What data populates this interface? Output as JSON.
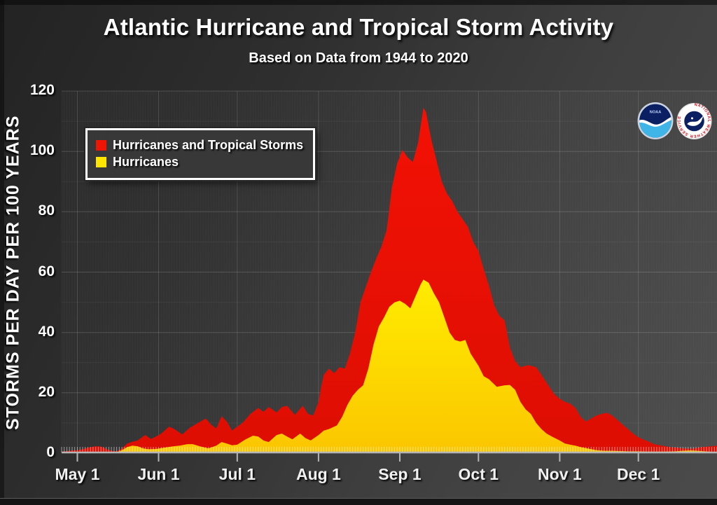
{
  "header": {
    "title": "Atlantic Hurricane and Tropical Storm Activity",
    "subtitle": "Based on Data from 1944 to 2020"
  },
  "legend": {
    "items": [
      {
        "label": "Hurricanes and Tropical Storms",
        "color": "#ee1505"
      },
      {
        "label": "Hurricanes",
        "color": "#ffe600"
      }
    ]
  },
  "logos": {
    "noaa_text": "NOAA",
    "nws_ring_text": "NATIONAL WEATHER SERVICE"
  },
  "colors": {
    "storms_red_top": "#f31104",
    "storms_red_bottom": "#dd0e03",
    "hurricane_yellow_top": "#ffec00",
    "hurricane_yellow_bottom": "#fbc600",
    "axis": "#b5b5b5",
    "text": "#ffffff"
  },
  "chart_data": {
    "type": "area",
    "title": "Atlantic Hurricane and Tropical Storm Activity",
    "subtitle": "Based on Data from 1944 to 2020",
    "xlabel": "",
    "ylabel": "STORMS PER DAY PER 100 YEARS",
    "ylim": [
      0,
      120
    ],
    "y_ticks": [
      0,
      20,
      40,
      60,
      80,
      100,
      120
    ],
    "x_tick_labels": [
      "May 1",
      "Jun 1",
      "Jul 1",
      "Aug 1",
      "Sep 1",
      "Oct 1",
      "Nov 1",
      "Dec 1"
    ],
    "x_tick_day_offsets": [
      0,
      31,
      61,
      92,
      123,
      153,
      184,
      214
    ],
    "x_domain_days": [
      -6,
      244
    ],
    "x_units": "days from May 1 (domain approx Apr 25 - Dec 31)",
    "grid": "major horizontal every 20, minor every 10, vertical at month starts, faint daily stripes, daily hatch ticks along baseline",
    "legend_position": "top-left",
    "series": [
      {
        "name": "Hurricanes and Tropical Storms",
        "color": "#ee1505",
        "points": [
          [
            -6,
            0.5
          ],
          [
            -3,
            0.8
          ],
          [
            0,
            1.0
          ],
          [
            2,
            1.3
          ],
          [
            4,
            1.8
          ],
          [
            7,
            2.3
          ],
          [
            9,
            2.2
          ],
          [
            11,
            1.4
          ],
          [
            13,
            0.8
          ],
          [
            15,
            0.6
          ],
          [
            17,
            1.5
          ],
          [
            19,
            3.2
          ],
          [
            21,
            3.8
          ],
          [
            23,
            4.2
          ],
          [
            25,
            5.5
          ],
          [
            26,
            6.0
          ],
          [
            28,
            4.7
          ],
          [
            30,
            5.5
          ],
          [
            32,
            6.5
          ],
          [
            35,
            8.8
          ],
          [
            37,
            8.0
          ],
          [
            40,
            6.2
          ],
          [
            43,
            8.5
          ],
          [
            46,
            10.0
          ],
          [
            49,
            11.5
          ],
          [
            51,
            9.5
          ],
          [
            53,
            8.2
          ],
          [
            55,
            12.2
          ],
          [
            57,
            10.5
          ],
          [
            59,
            7.5
          ],
          [
            61,
            8.8
          ],
          [
            63,
            10.0
          ],
          [
            66,
            13.0
          ],
          [
            69,
            15.0
          ],
          [
            71,
            13.7
          ],
          [
            73,
            15.3
          ],
          [
            76,
            13.5
          ],
          [
            78,
            15.3
          ],
          [
            80,
            15.7
          ],
          [
            83,
            12.7
          ],
          [
            86,
            15.7
          ],
          [
            88,
            13.0
          ],
          [
            90,
            12.5
          ],
          [
            92,
            17.0
          ],
          [
            93,
            22.0
          ],
          [
            94,
            26.0
          ],
          [
            96,
            28.0
          ],
          [
            98,
            26.5
          ],
          [
            100,
            28.5
          ],
          [
            102,
            28.0
          ],
          [
            104,
            33.0
          ],
          [
            106,
            40.0
          ],
          [
            108,
            50.0
          ],
          [
            110,
            55.0
          ],
          [
            112,
            60.0
          ],
          [
            114,
            64.5
          ],
          [
            116,
            68.5
          ],
          [
            118,
            74.0
          ],
          [
            120,
            88.0
          ],
          [
            122,
            96.0
          ],
          [
            124,
            100.5
          ],
          [
            126,
            98.0
          ],
          [
            128,
            96.5
          ],
          [
            130,
            103.0
          ],
          [
            132,
            114.5
          ],
          [
            133,
            113.0
          ],
          [
            135,
            104.0
          ],
          [
            137,
            97.0
          ],
          [
            139,
            90.0
          ],
          [
            141,
            86.0
          ],
          [
            143,
            83.5
          ],
          [
            145,
            80.0
          ],
          [
            147,
            77.5
          ],
          [
            149,
            75.0
          ],
          [
            151,
            70.0
          ],
          [
            153,
            67.0
          ],
          [
            155,
            61.0
          ],
          [
            157,
            55.5
          ],
          [
            159,
            49.0
          ],
          [
            161,
            45.5
          ],
          [
            163,
            44.0
          ],
          [
            165,
            35.0
          ],
          [
            167,
            30.5
          ],
          [
            169,
            28.5
          ],
          [
            172,
            29.2
          ],
          [
            175,
            28.5
          ],
          [
            177,
            26.0
          ],
          [
            180,
            22.0
          ],
          [
            182,
            19.5
          ],
          [
            184,
            18.0
          ],
          [
            186,
            17.0
          ],
          [
            188,
            16.4
          ],
          [
            190,
            15.0
          ],
          [
            192,
            12.0
          ],
          [
            194,
            10.5
          ],
          [
            196,
            11.5
          ],
          [
            198,
            12.5
          ],
          [
            200,
            13.0
          ],
          [
            202,
            13.4
          ],
          [
            204,
            12.5
          ],
          [
            206,
            11.0
          ],
          [
            208,
            9.5
          ],
          [
            210,
            8.0
          ],
          [
            212,
            6.5
          ],
          [
            214,
            5.3
          ],
          [
            216,
            4.5
          ],
          [
            218,
            3.8
          ],
          [
            220,
            3.0
          ],
          [
            223,
            2.5
          ],
          [
            226,
            2.0
          ],
          [
            229,
            1.8
          ],
          [
            232,
            1.5
          ],
          [
            235,
            1.5
          ],
          [
            238,
            2.0
          ],
          [
            241,
            2.2
          ],
          [
            244,
            2.5
          ]
        ]
      },
      {
        "name": "Hurricanes",
        "color": "#ffe600",
        "points": [
          [
            -6,
            0.0
          ],
          [
            0,
            0.1
          ],
          [
            7,
            0.1
          ],
          [
            13,
            0.2
          ],
          [
            15,
            0.3
          ],
          [
            17,
            1.0
          ],
          [
            19,
            2.0
          ],
          [
            21,
            2.5
          ],
          [
            23,
            2.3
          ],
          [
            25,
            1.6
          ],
          [
            27,
            1.3
          ],
          [
            30,
            1.4
          ],
          [
            33,
            1.8
          ],
          [
            36,
            2.2
          ],
          [
            39,
            2.5
          ],
          [
            42,
            3.0
          ],
          [
            44,
            3.0
          ],
          [
            47,
            2.2
          ],
          [
            50,
            1.6
          ],
          [
            53,
            2.5
          ],
          [
            55,
            3.7
          ],
          [
            57,
            3.2
          ],
          [
            59,
            2.6
          ],
          [
            61,
            2.8
          ],
          [
            64,
            4.5
          ],
          [
            67,
            5.8
          ],
          [
            69,
            5.5
          ],
          [
            71,
            4.2
          ],
          [
            73,
            3.7
          ],
          [
            76,
            6.0
          ],
          [
            78,
            6.5
          ],
          [
            80,
            5.5
          ],
          [
            82,
            4.6
          ],
          [
            85,
            6.5
          ],
          [
            87,
            5.0
          ],
          [
            89,
            4.2
          ],
          [
            92,
            6.0
          ],
          [
            94,
            7.5
          ],
          [
            96,
            8.0
          ],
          [
            99,
            9.2
          ],
          [
            101,
            12.0
          ],
          [
            103,
            16.0
          ],
          [
            105,
            19.0
          ],
          [
            107,
            21.0
          ],
          [
            109,
            22.5
          ],
          [
            111,
            28.0
          ],
          [
            113,
            36.0
          ],
          [
            115,
            42.0
          ],
          [
            117,
            45.0
          ],
          [
            119,
            48.5
          ],
          [
            121,
            50.0
          ],
          [
            123,
            50.5
          ],
          [
            125,
            49.5
          ],
          [
            127,
            48.0
          ],
          [
            129,
            52.0
          ],
          [
            131,
            56.0
          ],
          [
            132,
            57.5
          ],
          [
            134,
            56.5
          ],
          [
            136,
            53.0
          ],
          [
            138,
            50.0
          ],
          [
            140,
            45.0
          ],
          [
            142,
            40.0
          ],
          [
            144,
            37.5
          ],
          [
            146,
            37.0
          ],
          [
            148,
            37.5
          ],
          [
            150,
            33.0
          ],
          [
            153,
            29.0
          ],
          [
            155,
            25.5
          ],
          [
            157,
            24.5
          ],
          [
            160,
            22.0
          ],
          [
            163,
            22.5
          ],
          [
            165,
            22.6
          ],
          [
            167,
            21.0
          ],
          [
            169,
            17.0
          ],
          [
            171,
            14.5
          ],
          [
            173,
            13.0
          ],
          [
            175,
            10.0
          ],
          [
            177,
            8.0
          ],
          [
            179,
            6.5
          ],
          [
            181,
            5.5
          ],
          [
            184,
            4.2
          ],
          [
            186,
            3.2
          ],
          [
            188,
            2.8
          ],
          [
            190,
            2.5
          ],
          [
            192,
            2.0
          ],
          [
            195,
            1.5
          ],
          [
            198,
            1.0
          ],
          [
            201,
            0.8
          ],
          [
            204,
            0.8
          ],
          [
            207,
            0.7
          ],
          [
            210,
            0.6
          ],
          [
            214,
            0.6
          ],
          [
            218,
            0.5
          ],
          [
            223,
            0.5
          ],
          [
            228,
            0.6
          ],
          [
            231,
            0.8
          ],
          [
            234,
            0.9
          ],
          [
            238,
            0.7
          ],
          [
            241,
            0.5
          ],
          [
            244,
            0.4
          ]
        ]
      }
    ]
  }
}
